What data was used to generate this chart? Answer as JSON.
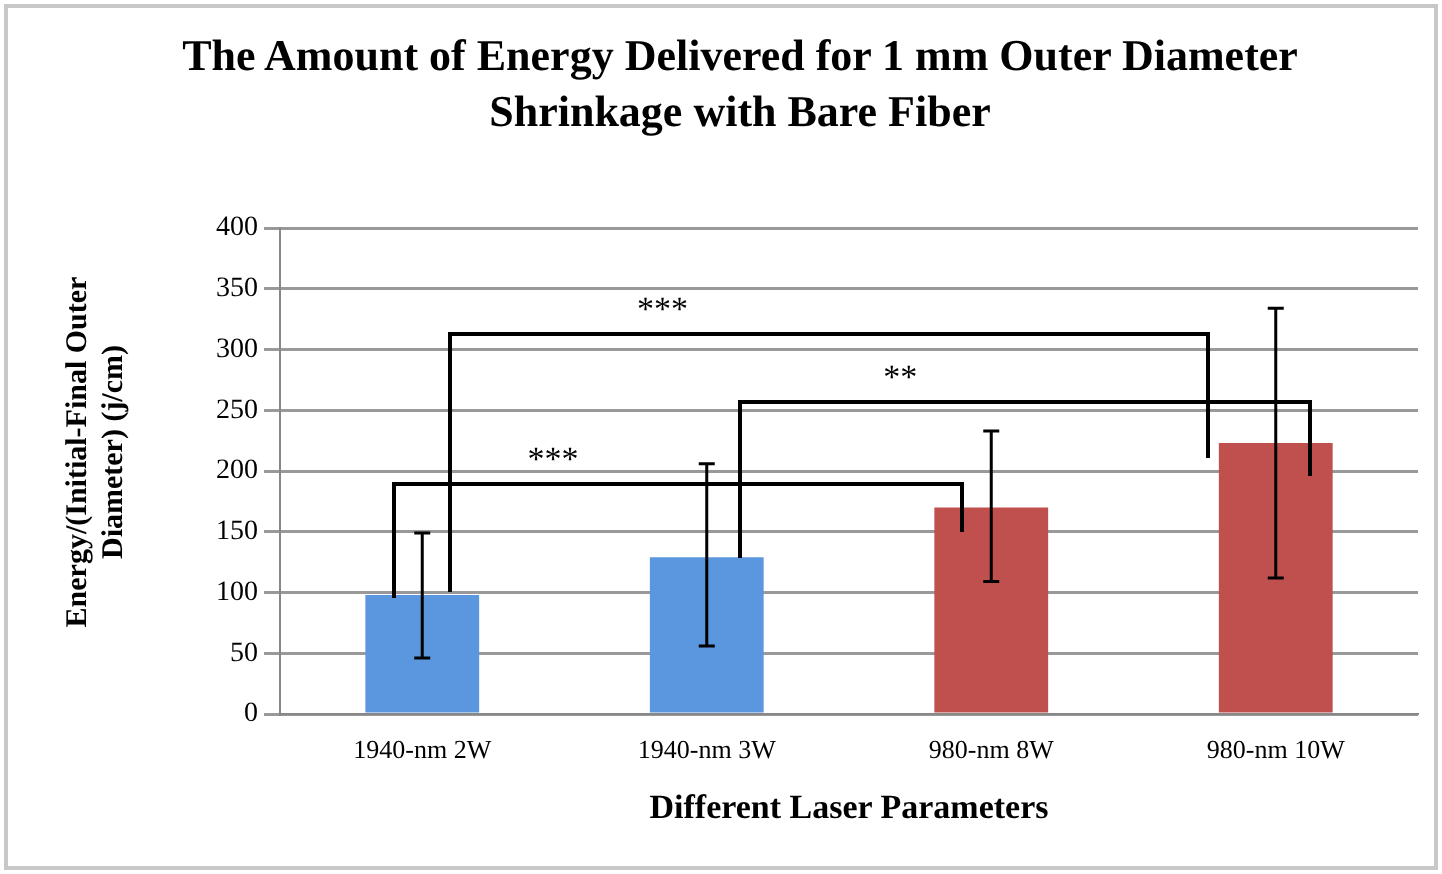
{
  "chart_data": {
    "type": "bar",
    "title": "The Amount of Energy Delivered for 1 mm Outer Diameter Shrinkage with Bare Fiber",
    "xlabel": "Different Laser Parameters",
    "ylabel": "Energy/(Initial-Final Outer Diameter) (j/cm)",
    "categories": [
      "1940-nm 2W",
      "1940-nm 3W",
      "980-nm 8W",
      "980-nm 10W"
    ],
    "values": [
      98,
      129,
      170,
      223
    ],
    "colors": [
      "#5a97de",
      "#5a97de",
      "#c0504d",
      "#c0504d"
    ],
    "errors": [
      [
        46,
        149
      ],
      [
        56,
        206
      ],
      [
        109,
        233
      ],
      [
        112,
        334
      ]
    ],
    "ylim": [
      0,
      400
    ],
    "yticks": [
      0,
      50,
      100,
      150,
      200,
      250,
      300,
      350,
      400
    ],
    "grid": "y",
    "annotations": [
      "***",
      "**",
      "***"
    ]
  }
}
